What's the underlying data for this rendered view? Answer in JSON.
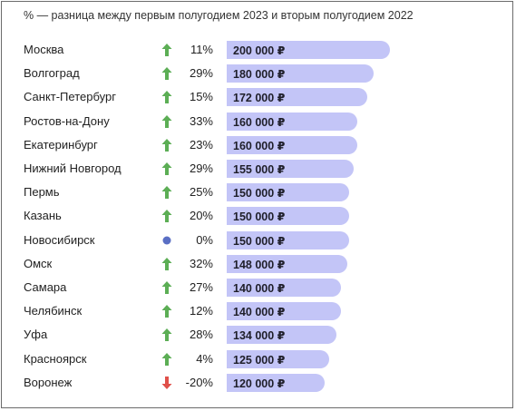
{
  "subtitle": "% — разница между первым полугодием 2023 и вторым полугодием 2022",
  "colors": {
    "bar": "#c3c5f7",
    "up": "#5cae55",
    "down": "#e0504a",
    "neutral": "#5a6fc4"
  },
  "chart_data": {
    "type": "bar",
    "orientation": "horizontal",
    "value_unit": "₽",
    "categories": [
      "Москва",
      "Волгоград",
      "Санкт-Петербург",
      "Ростов-на-Дону",
      "Екатеринбург",
      "Нижний Новгород",
      "Пермь",
      "Казань",
      "Новосибирск",
      "Омск",
      "Самара",
      "Челябинск",
      "Уфа",
      "Красноярск",
      "Воронеж"
    ],
    "values": [
      200000,
      180000,
      172000,
      160000,
      160000,
      155000,
      150000,
      150000,
      150000,
      148000,
      140000,
      140000,
      134000,
      125000,
      120000
    ],
    "value_labels": [
      "200 000 ₽",
      "180 000 ₽",
      "172 000 ₽",
      "160 000 ₽",
      "160 000 ₽",
      "155 000 ₽",
      "150 000 ₽",
      "150 000 ₽",
      "150 000 ₽",
      "148 000 ₽",
      "140 000 ₽",
      "140 000 ₽",
      "134 000 ₽",
      "125 000 ₽",
      "120 000 ₽"
    ],
    "change_percent": [
      11,
      29,
      15,
      33,
      23,
      29,
      25,
      20,
      0,
      32,
      27,
      12,
      28,
      4,
      -20
    ],
    "change_labels": [
      "11%",
      "29%",
      "15%",
      "33%",
      "23%",
      "29%",
      "25%",
      "20%",
      "0%",
      "32%",
      "27%",
      "12%",
      "28%",
      "4%",
      "-20%"
    ],
    "change_indicator": [
      "up-arrow",
      "up-arrow",
      "up-arrow",
      "up-arrow",
      "up-arrow",
      "up-arrow",
      "up-arrow",
      "up-arrow",
      "neutral-dot",
      "up-arrow",
      "up-arrow",
      "up-arrow",
      "up-arrow",
      "up-arrow",
      "down-arrow"
    ],
    "title": "",
    "xlabel": "",
    "ylabel": ""
  }
}
